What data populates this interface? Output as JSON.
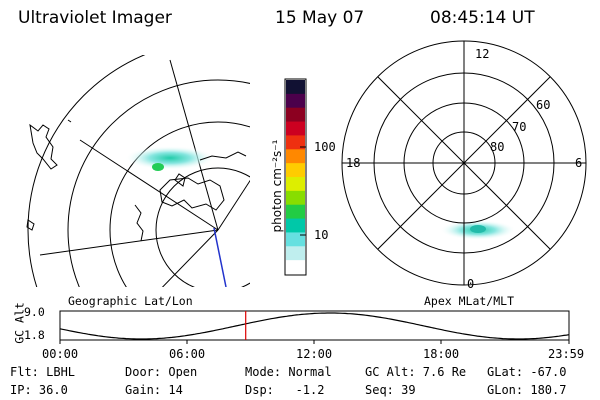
{
  "header": {
    "instrument": "Ultraviolet Imager",
    "date": "15 May 07",
    "time": "08:45:14 UT"
  },
  "colorbar": {
    "unit_label": "photon cm⁻²s⁻¹",
    "ticks": [
      "100",
      "10"
    ],
    "colors": [
      "#111133",
      "#4b004b",
      "#8c0020",
      "#cc0020",
      "#ee3010",
      "#ff8800",
      "#ffcc00",
      "#ddee00",
      "#88dd00",
      "#22cc44",
      "#00c8a8",
      "#66e0e0",
      "#bfeeee",
      "#ffffff"
    ]
  },
  "left_map": {
    "label": "Geographic Lat/Lon"
  },
  "right_map": {
    "label": "Apex MLat/MLT",
    "mlt_labels": {
      "top": "12",
      "left": "18",
      "right": "6",
      "bottom": "0"
    },
    "lat_labels": [
      "60",
      "70",
      "80"
    ]
  },
  "altitude_plot": {
    "ylabel": "GC Alt",
    "yticks": [
      "9.0",
      "1.8"
    ],
    "xticks": [
      "00:00",
      "06:00",
      "12:00",
      "18:00",
      "23:59"
    ],
    "marker_time": "08:45:14"
  },
  "info": {
    "row1": [
      "Flt: LBHL",
      "Door: Open",
      "Mode: Normal",
      "GC Alt: 7.6 Re",
      "GLat: -67.0"
    ],
    "row2": [
      "IP: 36.0",
      "Gain: 14",
      "Dsp:   -1.2",
      "Seq: 39",
      "GLon: 180.7"
    ]
  }
}
